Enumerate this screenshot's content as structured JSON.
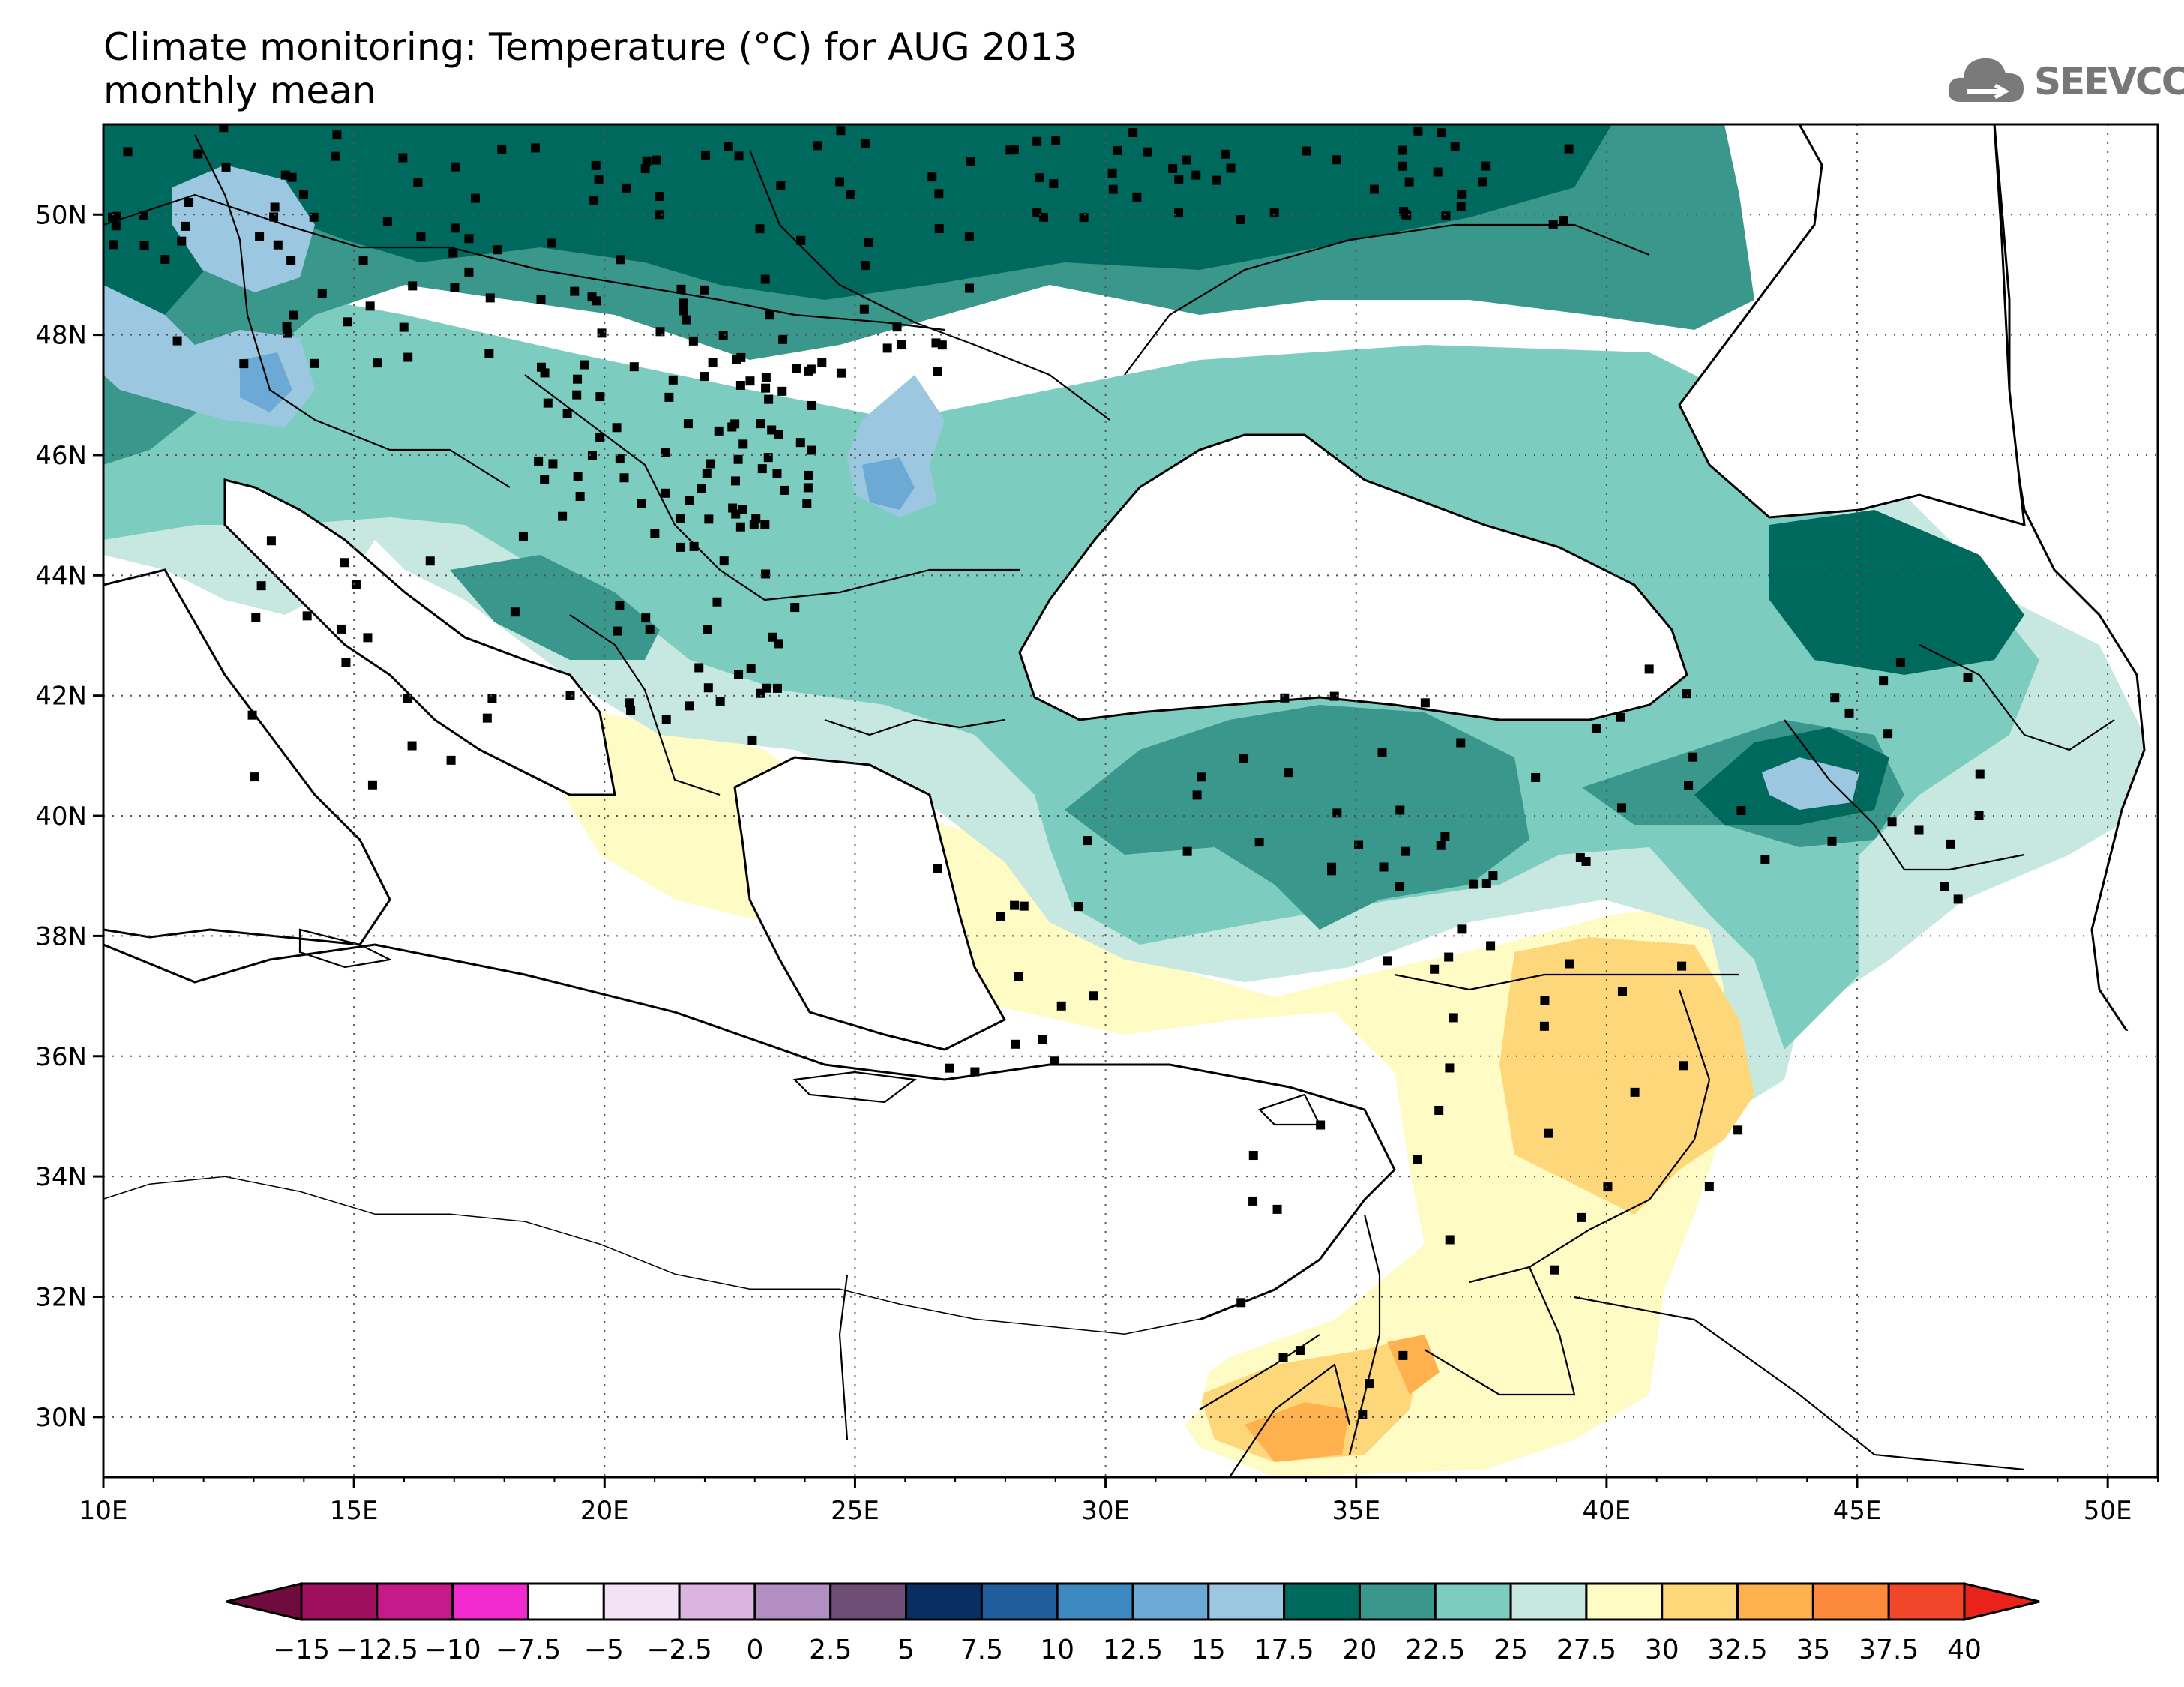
{
  "title": {
    "line1": "Climate monitoring: Temperature (°C) for AUG 2013",
    "line2": "monthly mean"
  },
  "logo": {
    "text": "SEEVCCC",
    "icon": "cloud-icon",
    "color": "#777777"
  },
  "map": {
    "lon_range": [
      10,
      51
    ],
    "lat_range": [
      29,
      51.5
    ],
    "lon_ticks": [
      {
        "v": 10,
        "label": "10E"
      },
      {
        "v": 15,
        "label": "15E"
      },
      {
        "v": 20,
        "label": "20E"
      },
      {
        "v": 25,
        "label": "25E"
      },
      {
        "v": 30,
        "label": "30E"
      },
      {
        "v": 35,
        "label": "35E"
      },
      {
        "v": 40,
        "label": "40E"
      },
      {
        "v": 45,
        "label": "45E"
      },
      {
        "v": 50,
        "label": "50E"
      }
    ],
    "lat_ticks": [
      {
        "v": 30,
        "label": "30N"
      },
      {
        "v": 32,
        "label": "32N"
      },
      {
        "v": 34,
        "label": "34N"
      },
      {
        "v": 36,
        "label": "36N"
      },
      {
        "v": 38,
        "label": "38N"
      },
      {
        "v": 40,
        "label": "40N"
      },
      {
        "v": 42,
        "label": "42N"
      },
      {
        "v": 44,
        "label": "44N"
      },
      {
        "v": 46,
        "label": "46N"
      },
      {
        "v": 48,
        "label": "48N"
      },
      {
        "v": 50,
        "label": "50N"
      }
    ],
    "grid": "dotted"
  },
  "colorbar": {
    "labels": [
      "-15",
      "-12.5",
      "-10",
      "-7.5",
      "-5",
      "-2.5",
      "0",
      "2.5",
      "5",
      "7.5",
      "10",
      "12.5",
      "15",
      "17.5",
      "20",
      "22.5",
      "25",
      "27.5",
      "30",
      "32.5",
      "35",
      "37.5",
      "40"
    ],
    "colors": [
      "#9e0f5e",
      "#c61a8a",
      "#f12ad0",
      "#ffffff",
      "#f2e3f4",
      "#dbb5df",
      "#b28ec2",
      "#6e4e74",
      "#0a2d62",
      "#1f5d9c",
      "#3d8ac2",
      "#6ca9d5",
      "#9bc8e0",
      "#00695e",
      "#3a978c",
      "#7ccdbf",
      "#c7e8e0",
      "#fffbc4",
      "#fed77b",
      "#feb14c",
      "#fb8a3c",
      "#f2462a"
    ],
    "under_color": "#700c3d",
    "over_color": "#e9221a"
  },
  "stations_legend": "station-marker-icon"
}
